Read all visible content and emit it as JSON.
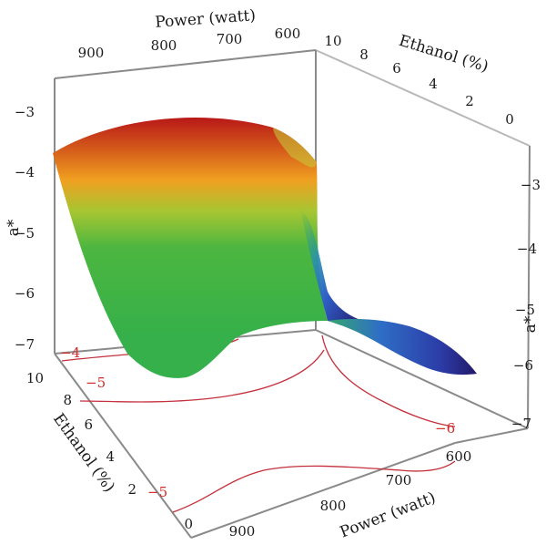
{
  "chart_data": {
    "type": "surface3d",
    "title": "",
    "zlabel": "a*",
    "xlabel": "Power (watt)",
    "ylabel": "Ethanol (%)",
    "x_ticks": [
      "600",
      "700",
      "800",
      "900"
    ],
    "y_ticks": [
      "0",
      "2",
      "4",
      "6",
      "8",
      "10"
    ],
    "z_ticks": [
      "−7",
      "−6",
      "−5",
      "−4",
      "−3"
    ],
    "back_x_ticks": [
      "900",
      "800",
      "700",
      "600"
    ],
    "back_y_ticks": [
      "10",
      "8",
      "6",
      "4",
      "2",
      "0"
    ],
    "contour_labels": [
      "−4",
      "−5",
      "−5",
      "−6"
    ],
    "zlim": [
      -7,
      -3
    ],
    "xlim": [
      600,
      900
    ],
    "ylim": [
      0,
      10
    ],
    "surface_corners": [
      {
        "power": 900,
        "ethanol": 10,
        "a": -3.6
      },
      {
        "power": 900,
        "ethanol": 0,
        "a": -6.6
      },
      {
        "power": 600,
        "ethanol": 10,
        "a": -4.2
      },
      {
        "power": 600,
        "ethanol": 0,
        "a": -6.0
      }
    ],
    "colormap": [
      "#2a1d7a",
      "#2f63c8",
      "#33b06a",
      "#6cc23a",
      "#b7c832",
      "#f0a020",
      "#b81818"
    ]
  }
}
